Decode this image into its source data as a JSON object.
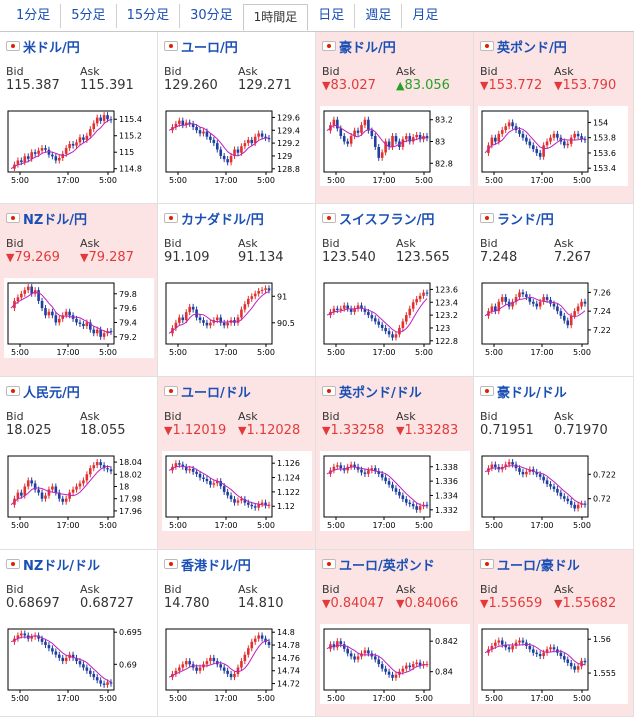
{
  "tabs": [
    {
      "label": "1分足",
      "active": false
    },
    {
      "label": "5分足",
      "active": false
    },
    {
      "label": "15分足",
      "active": false
    },
    {
      "label": "30分足",
      "active": false
    },
    {
      "label": "1時間足",
      "active": true
    },
    {
      "label": "日足",
      "active": false
    },
    {
      "label": "週足",
      "active": false
    },
    {
      "label": "月足",
      "active": false
    }
  ],
  "labels": {
    "bid": "Bid",
    "ask": "Ask"
  },
  "colors": {
    "up_candle": "#e03030",
    "down_candle": "#1f3fa0",
    "ma_line": "#c020c0",
    "down_text": "#e23a3a",
    "up_text": "#26a025",
    "negative_bg": "#fde4e4"
  },
  "icons": {
    "down": "▼",
    "up": "▲",
    "flag": "flag-icon"
  },
  "x_ticks": [
    "5:00",
    "17:00",
    "5:00"
  ],
  "pairs": [
    {
      "name": "米ドル/円",
      "bid": "115.387",
      "ask": "115.391",
      "bid_dir": "",
      "ask_dir": "",
      "bg": "white",
      "yticks": [
        "115.4",
        "115.2",
        "115",
        "114.8"
      ],
      "ymin": 114.76,
      "ymax": 115.5,
      "path": [
        114.8,
        114.85,
        114.9,
        114.88,
        114.95,
        114.92,
        115.0,
        114.98,
        115.02,
        115.05,
        115.03,
        114.97,
        114.95,
        114.9,
        114.93,
        114.98,
        115.05,
        115.1,
        115.08,
        115.12,
        115.18,
        115.15,
        115.2,
        115.28,
        115.35,
        115.42,
        115.38,
        115.45,
        115.4,
        115.39
      ]
    },
    {
      "name": "ユーロ/円",
      "bid": "129.260",
      "ask": "129.271",
      "bid_dir": "",
      "ask_dir": "",
      "bg": "white",
      "yticks": [
        "129.6",
        "129.4",
        "129.2",
        "129",
        "128.8"
      ],
      "ymin": 128.75,
      "ymax": 129.7,
      "path": [
        129.4,
        129.45,
        129.5,
        129.55,
        129.48,
        129.52,
        129.5,
        129.45,
        129.4,
        129.35,
        129.38,
        129.3,
        129.25,
        129.2,
        129.1,
        129.0,
        128.95,
        128.9,
        129.0,
        129.1,
        129.05,
        129.15,
        129.2,
        129.25,
        129.2,
        129.3,
        129.35,
        129.3,
        129.28,
        129.26
      ]
    },
    {
      "name": "豪ドル/円",
      "bid": "83.027",
      "ask": "83.056",
      "bid_dir": "down",
      "ask_dir": "up",
      "bg": "neg",
      "yticks": [
        "83.2",
        "83",
        "82.8"
      ],
      "ymin": 82.72,
      "ymax": 83.28,
      "path": [
        83.1,
        83.15,
        83.2,
        83.12,
        83.05,
        83.0,
        82.98,
        83.05,
        83.1,
        83.08,
        83.15,
        83.2,
        83.1,
        83.05,
        82.95,
        82.85,
        82.9,
        83.0,
        82.95,
        83.05,
        83.0,
        82.95,
        83.02,
        83.05,
        83.0,
        83.04,
        83.06,
        83.02,
        83.05,
        83.03
      ]
    },
    {
      "name": "英ポンド/円",
      "bid": "153.772",
      "ask": "153.790",
      "bid_dir": "down",
      "ask_dir": "down",
      "bg": "neg",
      "yticks": [
        "154",
        "153.8",
        "153.6",
        "153.4"
      ],
      "ymin": 153.35,
      "ymax": 154.15,
      "path": [
        153.6,
        153.7,
        153.8,
        153.75,
        153.85,
        153.9,
        153.95,
        154.0,
        153.95,
        153.9,
        153.85,
        153.8,
        153.75,
        153.7,
        153.65,
        153.6,
        153.55,
        153.7,
        153.75,
        153.8,
        153.85,
        153.8,
        153.75,
        153.7,
        153.72,
        153.8,
        153.85,
        153.82,
        153.78,
        153.77
      ]
    },
    {
      "name": "NZドル/円",
      "bid": "79.269",
      "ask": "79.287",
      "bid_dir": "down",
      "ask_dir": "down",
      "bg": "neg",
      "yticks": [
        "79.8",
        "79.6",
        "79.4",
        "79.2"
      ],
      "ymin": 79.1,
      "ymax": 79.95,
      "path": [
        79.6,
        79.7,
        79.75,
        79.8,
        79.85,
        79.9,
        79.8,
        79.85,
        79.7,
        79.6,
        79.5,
        79.55,
        79.5,
        79.4,
        79.45,
        79.5,
        79.55,
        79.5,
        79.45,
        79.4,
        79.38,
        79.35,
        79.4,
        79.3,
        79.25,
        79.3,
        79.2,
        79.25,
        79.28,
        79.27
      ]
    },
    {
      "name": "カナダドル/円",
      "bid": "91.109",
      "ask": "91.134",
      "bid_dir": "",
      "ask_dir": "",
      "bg": "white",
      "yticks": [
        "91",
        "90.5"
      ],
      "ymin": 90.1,
      "ymax": 91.25,
      "path": [
        90.3,
        90.4,
        90.5,
        90.6,
        90.55,
        90.7,
        90.8,
        90.75,
        90.6,
        90.55,
        90.5,
        90.45,
        90.5,
        90.55,
        90.6,
        90.5,
        90.45,
        90.5,
        90.55,
        90.5,
        90.6,
        90.75,
        90.85,
        90.95,
        91.0,
        91.05,
        91.1,
        91.12,
        91.15,
        91.11
      ]
    },
    {
      "name": "スイスフラン/円",
      "bid": "123.540",
      "ask": "123.565",
      "bid_dir": "",
      "ask_dir": "",
      "bg": "white",
      "yticks": [
        "123.6",
        "123.4",
        "123.2",
        "123",
        "122.8"
      ],
      "ymin": 122.75,
      "ymax": 123.7,
      "path": [
        123.2,
        123.25,
        123.3,
        123.28,
        123.3,
        123.35,
        123.3,
        123.25,
        123.3,
        123.35,
        123.3,
        123.25,
        123.2,
        123.15,
        123.1,
        123.05,
        123.0,
        122.95,
        122.9,
        122.85,
        122.9,
        123.0,
        123.1,
        123.2,
        123.3,
        123.4,
        123.45,
        123.5,
        123.55,
        123.54
      ]
    },
    {
      "name": "ランド/円",
      "bid": "7.248",
      "ask": "7.267",
      "bid_dir": "",
      "ask_dir": "",
      "bg": "white",
      "yticks": [
        "7.26",
        "7.24",
        "7.22"
      ],
      "ymin": 7.205,
      "ymax": 7.27,
      "path": [
        7.235,
        7.24,
        7.245,
        7.24,
        7.25,
        7.255,
        7.25,
        7.245,
        7.25,
        7.255,
        7.26,
        7.258,
        7.255,
        7.25,
        7.248,
        7.245,
        7.25,
        7.255,
        7.252,
        7.248,
        7.245,
        7.24,
        7.235,
        7.23,
        7.225,
        7.235,
        7.24,
        7.245,
        7.25,
        7.248
      ]
    },
    {
      "name": "人民元/円",
      "bid": "18.025",
      "ask": "18.055",
      "bid_dir": "",
      "ask_dir": "",
      "bg": "white",
      "yticks": [
        "18.04",
        "18.02",
        "18",
        "17.98",
        "17.96"
      ],
      "ymin": 17.95,
      "ymax": 18.05,
      "path": [
        17.97,
        17.98,
        17.99,
        17.985,
        18.0,
        18.01,
        18.005,
        17.995,
        17.99,
        17.98,
        17.985,
        17.995,
        18.0,
        17.99,
        17.98,
        17.975,
        17.98,
        17.99,
        17.995,
        18.0,
        18.005,
        18.01,
        18.02,
        18.03,
        18.035,
        18.04,
        18.035,
        18.03,
        18.028,
        18.025
      ]
    },
    {
      "name": "ユーロ/ドル",
      "bid": "1.12019",
      "ask": "1.12028",
      "bid_dir": "down",
      "ask_dir": "down",
      "bg": "neg",
      "yticks": [
        "1.126",
        "1.124",
        "1.122",
        "1.12"
      ],
      "ymin": 1.1185,
      "ymax": 1.127,
      "path": [
        1.125,
        1.1255,
        1.126,
        1.1258,
        1.1255,
        1.125,
        1.1252,
        1.1248,
        1.1245,
        1.124,
        1.1238,
        1.1235,
        1.123,
        1.1232,
        1.1235,
        1.1228,
        1.122,
        1.1215,
        1.121,
        1.1205,
        1.1208,
        1.121,
        1.1205,
        1.1202,
        1.12,
        1.1198,
        1.1203,
        1.1205,
        1.1201,
        1.1202
      ]
    },
    {
      "name": "英ポンド/ドル",
      "bid": "1.33258",
      "ask": "1.33283",
      "bid_dir": "down",
      "ask_dir": "down",
      "bg": "neg",
      "yticks": [
        "1.338",
        "1.336",
        "1.334",
        "1.332"
      ],
      "ymin": 1.331,
      "ymax": 1.3395,
      "path": [
        1.337,
        1.3375,
        1.338,
        1.3382,
        1.3378,
        1.3375,
        1.338,
        1.3383,
        1.338,
        1.3376,
        1.3372,
        1.337,
        1.3375,
        1.3378,
        1.3374,
        1.337,
        1.3365,
        1.336,
        1.3355,
        1.335,
        1.3345,
        1.334,
        1.3335,
        1.333,
        1.3328,
        1.3325,
        1.332,
        1.3325,
        1.3327,
        1.3326
      ]
    },
    {
      "name": "豪ドル/ドル",
      "bid": "0.71951",
      "ask": "0.71970",
      "bid_dir": "",
      "ask_dir": "",
      "bg": "white",
      "yticks": [
        "0.722",
        "0.72"
      ],
      "ymin": 0.7185,
      "ymax": 0.7235,
      "path": [
        0.7222,
        0.7225,
        0.7228,
        0.7226,
        0.7224,
        0.7226,
        0.7228,
        0.723,
        0.7228,
        0.7225,
        0.7222,
        0.722,
        0.7222,
        0.7224,
        0.7222,
        0.722,
        0.7218,
        0.7215,
        0.7212,
        0.721,
        0.7208,
        0.7205,
        0.7202,
        0.72,
        0.7198,
        0.7195,
        0.7192,
        0.7195,
        0.7196,
        0.7195
      ]
    },
    {
      "name": "NZドル/ドル",
      "bid": "0.68697",
      "ask": "0.68727",
      "bid_dir": "",
      "ask_dir": "",
      "bg": "white",
      "yticks": [
        "0.695",
        "0.69"
      ],
      "ymin": 0.686,
      "ymax": 0.6955,
      "path": [
        0.6935,
        0.694,
        0.6945,
        0.6948,
        0.6945,
        0.694,
        0.6943,
        0.6945,
        0.694,
        0.6935,
        0.693,
        0.6925,
        0.692,
        0.6915,
        0.691,
        0.6905,
        0.691,
        0.6915,
        0.691,
        0.6905,
        0.69,
        0.6895,
        0.689,
        0.6885,
        0.688,
        0.6875,
        0.687,
        0.6868,
        0.6872,
        0.687
      ]
    },
    {
      "name": "香港ドル/円",
      "bid": "14.780",
      "ask": "14.810",
      "bid_dir": "",
      "ask_dir": "",
      "bg": "white",
      "yticks": [
        "14.8",
        "14.78",
        "14.76",
        "14.74",
        "14.72"
      ],
      "ymin": 14.71,
      "ymax": 14.805,
      "path": [
        14.73,
        14.735,
        14.74,
        14.745,
        14.75,
        14.755,
        14.75,
        14.745,
        14.74,
        14.745,
        14.75,
        14.755,
        14.76,
        14.755,
        14.75,
        14.745,
        14.74,
        14.735,
        14.73,
        14.735,
        14.745,
        14.755,
        14.765,
        14.775,
        14.785,
        14.79,
        14.795,
        14.79,
        14.785,
        14.78
      ]
    },
    {
      "name": "ユーロ/英ポンド",
      "bid": "0.84047",
      "ask": "0.84066",
      "bid_dir": "down",
      "ask_dir": "down",
      "bg": "neg",
      "yticks": [
        "0.842",
        "0.84"
      ],
      "ymin": 0.8388,
      "ymax": 0.8428,
      "path": [
        0.8415,
        0.8418,
        0.8416,
        0.842,
        0.8418,
        0.8415,
        0.8412,
        0.841,
        0.8408,
        0.841,
        0.8412,
        0.8414,
        0.8412,
        0.841,
        0.8408,
        0.8405,
        0.8402,
        0.84,
        0.8398,
        0.8396,
        0.8398,
        0.84,
        0.8402,
        0.8404,
        0.8403,
        0.8405,
        0.8406,
        0.8404,
        0.8405,
        0.8405
      ]
    },
    {
      "name": "ユーロ/豪ドル",
      "bid": "1.55659",
      "ask": "1.55682",
      "bid_dir": "down",
      "ask_dir": "down",
      "bg": "neg",
      "yticks": [
        "1.56",
        "1.555"
      ],
      "ymin": 1.5525,
      "ymax": 1.5615,
      "path": [
        1.558,
        1.5585,
        1.559,
        1.5595,
        1.5598,
        1.5592,
        1.5588,
        1.5585,
        1.559,
        1.5595,
        1.5598,
        1.5595,
        1.559,
        1.5585,
        1.558,
        1.5578,
        1.5575,
        1.558,
        1.5585,
        1.5588,
        1.5585,
        1.558,
        1.5575,
        1.557,
        1.5565,
        1.556,
        1.5555,
        1.556,
        1.5568,
        1.5566
      ]
    }
  ]
}
